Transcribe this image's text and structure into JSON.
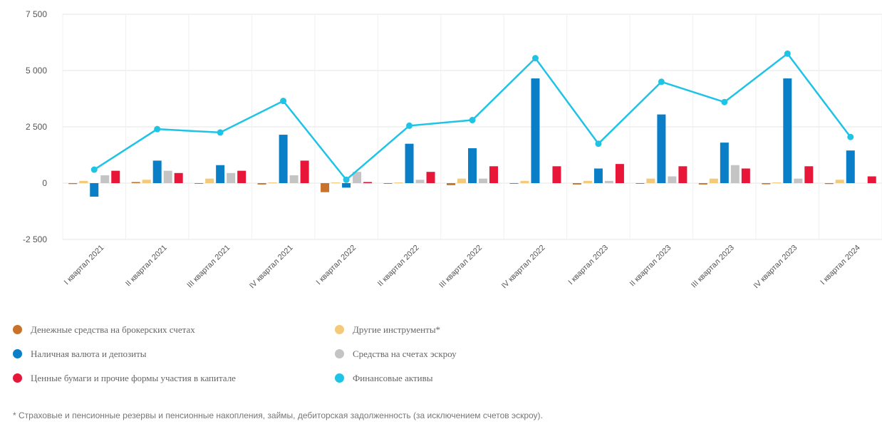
{
  "chart_data": {
    "type": "bar+line",
    "categories": [
      "I квартал 2021",
      "II квартал 2021",
      "III квартал 2021",
      "IV квартал 2021",
      "I квартал 2022",
      "II квартал 2022",
      "III квартал 2022",
      "IV квартал 2022",
      "I квартал 2023",
      "II квартал 2023",
      "III квартал 2023",
      "IV квартал 2023",
      "I квартал 2024"
    ],
    "ylim": [
      -2500,
      7500
    ],
    "yticks": [
      -2500,
      0,
      2500,
      5000,
      7500
    ],
    "ytick_labels": [
      "-2 500",
      "0",
      "2 500",
      "5 000",
      "7 500"
    ],
    "grid": true,
    "legend_position": "bottom",
    "series": [
      {
        "name": "Денежные средства на брокерских счетах",
        "type": "bar",
        "color": "#c8722a",
        "values": [
          -40,
          50,
          -30,
          -60,
          -400,
          -20,
          -90,
          -20,
          -60,
          -30,
          -60,
          -50,
          -40
        ]
      },
      {
        "name": "Другие инструменты*",
        "type": "bar",
        "color": "#f5c97a",
        "values": [
          100,
          150,
          200,
          30,
          30,
          30,
          200,
          100,
          100,
          200,
          200,
          30,
          150
        ]
      },
      {
        "name": "Наличная валюта и депозиты",
        "type": "bar",
        "color": "#0a7fc8",
        "values": [
          -600,
          1000,
          800,
          2150,
          -200,
          1750,
          1550,
          4650,
          650,
          3050,
          1800,
          4650,
          1450
        ]
      },
      {
        "name": "Средства на счетах эскроу",
        "type": "bar",
        "color": "#c4c4c4",
        "values": [
          350,
          550,
          450,
          350,
          500,
          150,
          200,
          0,
          100,
          300,
          800,
          200,
          0
        ]
      },
      {
        "name": "Ценные бумаги и прочие формы участия в капитале",
        "type": "bar",
        "color": "#e8173a",
        "values": [
          550,
          450,
          550,
          1000,
          50,
          500,
          750,
          750,
          850,
          750,
          650,
          750,
          300
        ]
      },
      {
        "name": "Финансовые активы",
        "type": "line",
        "color": "#1fc3e6",
        "values": [
          600,
          2400,
          2250,
          3650,
          150,
          2550,
          2800,
          5550,
          1750,
          4500,
          3600,
          5750,
          2050
        ]
      }
    ]
  },
  "legend": {
    "items": [
      {
        "label": "Денежные средства на брокерских счетах",
        "color": "#c8722a"
      },
      {
        "label": "Другие инструменты*",
        "color": "#f5c97a"
      },
      {
        "label": "Наличная валюта и депозиты",
        "color": "#0a7fc8"
      },
      {
        "label": "Средства на счетах эскроу",
        "color": "#c4c4c4"
      },
      {
        "label": "Ценные бумаги и прочие формы участия в капитале",
        "color": "#e8173a"
      },
      {
        "label": "Финансовые активы",
        "color": "#1fc3e6"
      }
    ]
  },
  "footnote": "* Страховые и пенсионные резервы и пенсионные накопления, займы, дебиторская задолженность (за исключением счетов эскроу)."
}
